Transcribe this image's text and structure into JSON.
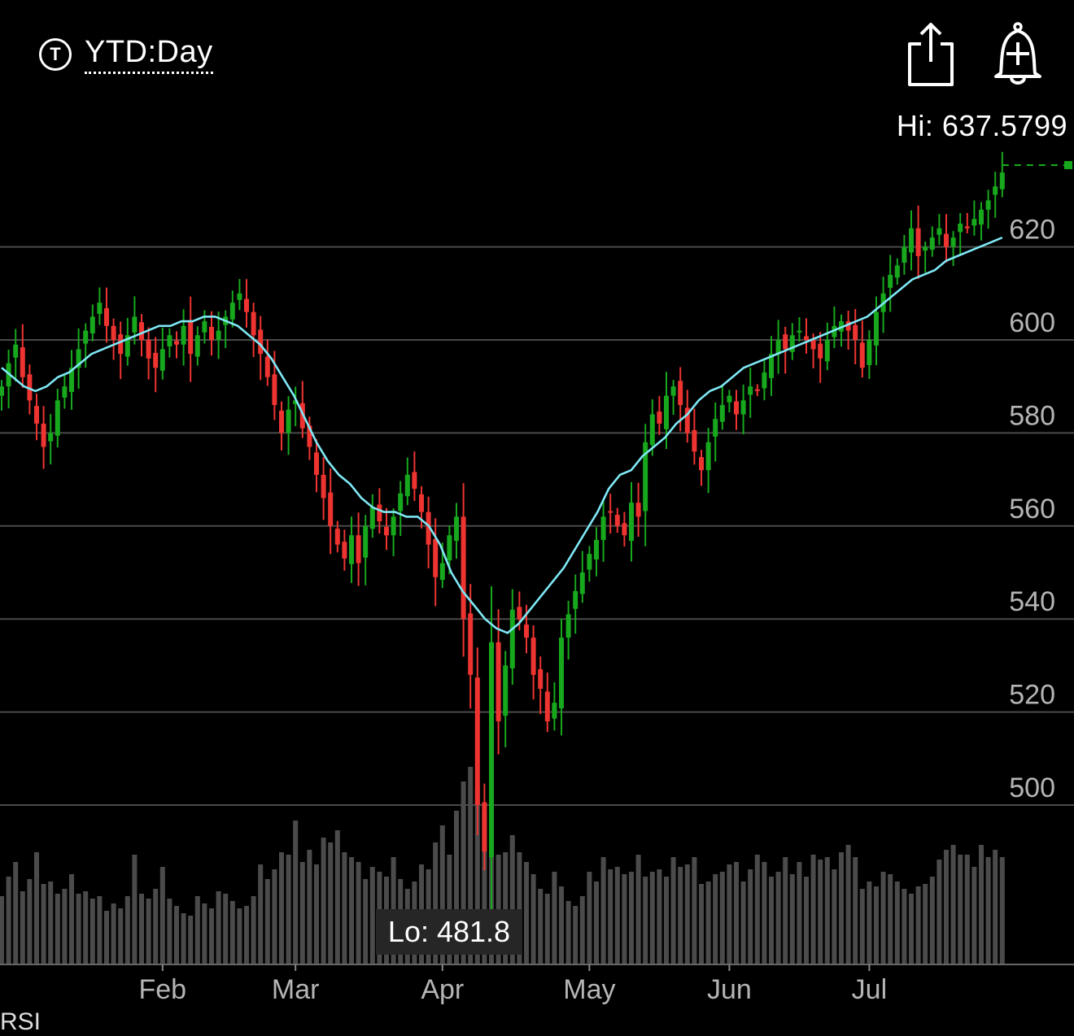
{
  "header": {
    "range_icon": "T",
    "range_label": "YTD:Day",
    "share_icon": "share-icon",
    "alert_icon": "bell-plus-icon"
  },
  "hi_label": "Hi: 637.5799",
  "lo_label": "Lo: 481.8",
  "rsi_label": "RSI",
  "colors": {
    "up": "#17a81d",
    "down": "#ee3431",
    "ma": "#7fe8f5",
    "volume": "#4b4b4b",
    "grid": "#4a4a4a",
    "axis_text": "#b5b5b5"
  },
  "chart_data": {
    "type": "candlestick",
    "y_ticks": [
      500,
      520,
      540,
      560,
      580,
      600,
      620
    ],
    "ylim": [
      481.8,
      637.58
    ],
    "x_ticks": [
      {
        "label": "Feb",
        "day": 23
      },
      {
        "label": "Mar",
        "day": 42
      },
      {
        "label": "Apr",
        "day": 63
      },
      {
        "label": "May",
        "day": 84
      },
      {
        "label": "Jun",
        "day": 104
      },
      {
        "label": "Jul",
        "day": 124
      }
    ],
    "hi": 637.58,
    "lo": 481.8,
    "series": [
      {
        "name": "Price",
        "values": [
          590,
          595,
          599,
          592,
          587,
          582,
          577,
          580,
          587,
          590,
          594,
          598,
          602,
          605,
          608,
          603,
          600,
          597,
          601,
          605,
          600,
          596,
          594,
          598,
          601,
          599,
          603,
          597,
          601,
          604,
          600,
          602,
          605,
          608,
          610,
          606,
          601,
          597,
          592,
          586,
          580,
          585,
          587,
          581,
          577,
          571,
          566,
          560,
          556,
          553,
          558,
          552,
          560,
          564,
          561,
          558,
          562,
          567,
          571,
          568,
          563,
          556,
          549,
          552,
          558,
          562,
          540,
          528,
          500,
          490,
          535,
          518,
          530,
          542,
          540,
          536,
          528,
          525,
          518,
          522,
          536,
          541,
          546,
          550,
          554,
          557,
          562,
          563,
          560,
          558,
          565,
          562,
          578,
          584,
          582,
          588,
          590,
          586,
          580,
          576,
          572,
          578,
          583,
          586,
          588,
          584,
          587,
          590,
          589,
          593,
          597,
          600,
          598,
          601,
          602,
          600,
          598,
          596,
          600,
          603,
          604,
          602,
          600,
          594,
          600,
          606,
          610,
          614,
          616,
          620,
          624,
          618,
          620,
          622,
          624,
          620,
          622,
          625,
          624,
          626,
          628,
          630,
          633,
          636
        ]
      },
      {
        "name": "MA",
        "values": [
          594,
          592,
          590,
          589,
          590,
          592,
          593,
          595,
          597,
          598,
          599,
          600,
          601,
          602,
          603,
          603,
          604,
          604,
          605,
          605,
          604,
          603,
          601,
          599,
          596,
          592,
          588,
          583,
          578,
          574,
          571,
          569,
          566,
          564,
          563,
          563,
          562,
          562,
          560,
          556,
          550,
          546,
          543,
          540,
          538,
          537,
          539,
          542,
          545,
          548,
          551,
          555,
          559,
          563,
          568,
          571,
          572,
          575,
          577,
          579,
          582,
          584,
          587,
          589,
          590,
          592,
          594,
          595,
          596,
          597,
          598,
          599,
          600,
          601,
          602,
          603,
          604,
          605,
          607,
          609,
          611,
          613,
          614,
          615,
          617,
          618,
          619,
          620,
          621,
          622
        ]
      },
      {
        "name": "Volume",
        "values": [
          0.28,
          0.36,
          0.42,
          0.3,
          0.35,
          0.46,
          0.33,
          0.34,
          0.29,
          0.31,
          0.37,
          0.29,
          0.3,
          0.27,
          0.28,
          0.22,
          0.25,
          0.23,
          0.28,
          0.45,
          0.29,
          0.27,
          0.31,
          0.4,
          0.27,
          0.24,
          0.21,
          0.2,
          0.28,
          0.25,
          0.23,
          0.3,
          0.29,
          0.26,
          0.23,
          0.24,
          0.28,
          0.41,
          0.35,
          0.39,
          0.46,
          0.45,
          0.59,
          0.42,
          0.47,
          0.41,
          0.52,
          0.5,
          0.55,
          0.46,
          0.44,
          0.42,
          0.35,
          0.4,
          0.38,
          0.36,
          0.44,
          0.35,
          0.31,
          0.34,
          0.41,
          0.39,
          0.5,
          0.57,
          0.45,
          0.63,
          0.75,
          0.81,
          0.72,
          0.62,
          0.8,
          0.45,
          0.46,
          0.53,
          0.46,
          0.42,
          0.37,
          0.31,
          0.29,
          0.38,
          0.32,
          0.26,
          0.24,
          0.28,
          0.38,
          0.34,
          0.44,
          0.39,
          0.4,
          0.37,
          0.38,
          0.45,
          0.36,
          0.38,
          0.39,
          0.36,
          0.44,
          0.4,
          0.41,
          0.44,
          0.33,
          0.34,
          0.37,
          0.38,
          0.41,
          0.42,
          0.34,
          0.39,
          0.45,
          0.42,
          0.36,
          0.38,
          0.44,
          0.37,
          0.42,
          0.36,
          0.45,
          0.43,
          0.44,
          0.39,
          0.46,
          0.49,
          0.44,
          0.31,
          0.34,
          0.32,
          0.38,
          0.37,
          0.34,
          0.31,
          0.29,
          0.32,
          0.33,
          0.36,
          0.43,
          0.47,
          0.49,
          0.45,
          0.45,
          0.4,
          0.49,
          0.44,
          0.47,
          0.44
        ]
      }
    ]
  }
}
